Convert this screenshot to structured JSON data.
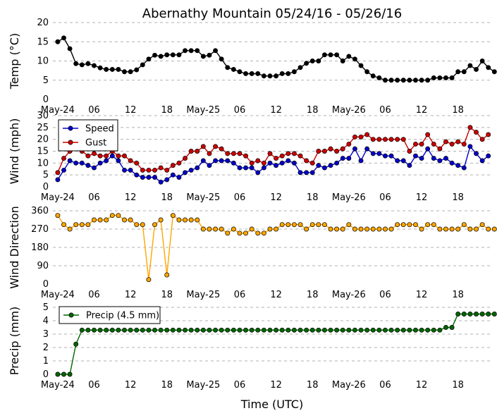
{
  "title": "Abernathy Mountain 05/24/16 - 05/26/16",
  "xlabel": "Time (UTC)",
  "x_ticks": [
    {
      "hour": 0,
      "label": "May-24"
    },
    {
      "hour": 6,
      "label": "06"
    },
    {
      "hour": 12,
      "label": "12"
    },
    {
      "hour": 18,
      "label": "18"
    },
    {
      "hour": 24,
      "label": "May-25"
    },
    {
      "hour": 30,
      "label": "06"
    },
    {
      "hour": 36,
      "label": "12"
    },
    {
      "hour": 42,
      "label": "18"
    },
    {
      "hour": 48,
      "label": "May-26"
    },
    {
      "hour": 54,
      "label": "06"
    },
    {
      "hour": 60,
      "label": "12"
    },
    {
      "hour": 66,
      "label": "18"
    }
  ],
  "x_range": [
    -0.8,
    71.5
  ],
  "colors": {
    "temp": "#000000",
    "speed": "#0000cc",
    "gust": "#cc0000",
    "direction": "#ffa500",
    "precip": "#006600"
  },
  "chart_data": [
    {
      "type": "line",
      "panel": "temp",
      "ylabel": "Temp (°C)",
      "ylim": [
        0,
        20
      ],
      "yticks": [
        0,
        5,
        10,
        15,
        20
      ],
      "hours_start": 0,
      "series": [
        {
          "name": "Temp",
          "color_key": "temp",
          "values": [
            15,
            16,
            13.2,
            9.3,
            9,
            9.3,
            8.8,
            8.2,
            7.8,
            7.8,
            7.8,
            7.2,
            7.2,
            7.7,
            9,
            10.5,
            11.5,
            11.2,
            11.6,
            11.6,
            11.6,
            12.7,
            12.7,
            12.7,
            11.2,
            11.5,
            12.7,
            10.5,
            8.3,
            7.8,
            7.2,
            6.7,
            6.7,
            6.7,
            6.1,
            6.1,
            6.1,
            6.7,
            6.7,
            7.2,
            8.3,
            9.4,
            10,
            10,
            11.6,
            11.6,
            11.6,
            10,
            11.2,
            10.5,
            8.8,
            7.2,
            6.1,
            5.6,
            5,
            5,
            5,
            5,
            5,
            5,
            5,
            5,
            5.6,
            5.6,
            5.6,
            5.6,
            7.2,
            7.2,
            8.8,
            7.8,
            10,
            8.3,
            7.2
          ]
        }
      ],
      "legend": null
    },
    {
      "type": "line",
      "panel": "wind",
      "ylabel": "Wind (mph)",
      "ylim": [
        0,
        30
      ],
      "yticks": [
        0,
        5,
        10,
        15,
        20,
        25,
        30
      ],
      "hours_start": 0,
      "series": [
        {
          "name": "Speed",
          "color_key": "speed",
          "values": [
            3,
            7,
            11,
            10,
            10,
            9,
            8,
            10,
            11,
            13,
            11,
            7,
            7,
            5,
            4,
            4,
            4,
            2,
            3,
            5,
            4,
            6,
            7,
            8,
            11,
            9,
            11,
            11,
            11,
            10,
            8,
            8,
            8,
            6,
            8,
            10,
            9,
            10,
            11,
            10,
            6,
            6,
            6,
            9,
            8,
            9,
            10,
            12,
            12,
            16,
            11,
            16,
            14,
            14,
            13,
            13,
            11,
            11,
            9,
            13,
            12,
            16,
            12,
            11,
            12,
            10,
            9,
            8,
            17,
            14,
            11,
            13
          ]
        },
        {
          "name": "Gust",
          "color_key": "gust",
          "values": [
            6,
            12,
            15,
            16,
            15,
            13,
            14,
            13,
            13,
            15,
            13,
            13,
            11,
            10,
            7,
            7,
            7,
            8,
            7,
            9,
            10,
            12,
            15,
            15,
            17,
            14,
            17,
            16,
            14,
            14,
            14,
            13,
            10,
            11,
            10,
            14,
            12,
            13,
            14,
            14,
            13,
            11,
            10,
            15,
            15,
            16,
            15,
            16,
            18,
            21,
            21,
            22,
            20,
            20,
            20,
            20,
            20,
            20,
            15,
            18,
            18,
            22,
            18,
            16,
            19,
            18,
            19,
            18,
            25,
            23,
            20,
            22
          ]
        }
      ],
      "legend": {
        "position": "top-left",
        "labels": [
          "Speed",
          "Gust"
        ]
      }
    },
    {
      "type": "line",
      "panel": "direction",
      "ylabel": "Wind Direction",
      "ylim": [
        0,
        360
      ],
      "yticks": [
        0,
        90,
        180,
        270,
        360
      ],
      "hours_start": 0,
      "series": [
        {
          "name": "Wind Direction",
          "color_key": "direction",
          "values": [
            337,
            292,
            270,
            292,
            292,
            292,
            315,
            315,
            315,
            337,
            337,
            315,
            315,
            292,
            292,
            22,
            292,
            315,
            45,
            337,
            315,
            315,
            315,
            315,
            270,
            270,
            270,
            270,
            250,
            270,
            250,
            250,
            270,
            250,
            250,
            270,
            270,
            292,
            292,
            292,
            292,
            270,
            292,
            292,
            292,
            270,
            270,
            270,
            292,
            270,
            270,
            270,
            270,
            270,
            270,
            270,
            292,
            292,
            292,
            292,
            270,
            292,
            292,
            270,
            270,
            270,
            270,
            292,
            270,
            270,
            292,
            270,
            270
          ]
        }
      ],
      "legend": null
    },
    {
      "type": "line",
      "panel": "precip",
      "ylabel": "Precip (mm)",
      "ylim": [
        0,
        5
      ],
      "yticks": [
        0,
        1,
        2,
        3,
        4,
        5
      ],
      "hours_start": 0,
      "series": [
        {
          "name": "Precip (4.5 mm)",
          "color_key": "precip",
          "values": [
            0,
            0,
            0,
            2.25,
            3.3,
            3.3,
            3.3,
            3.3,
            3.3,
            3.3,
            3.3,
            3.3,
            3.3,
            3.3,
            3.3,
            3.3,
            3.3,
            3.3,
            3.3,
            3.3,
            3.3,
            3.3,
            3.3,
            3.3,
            3.3,
            3.3,
            3.3,
            3.3,
            3.3,
            3.3,
            3.3,
            3.3,
            3.3,
            3.3,
            3.3,
            3.3,
            3.3,
            3.3,
            3.3,
            3.3,
            3.3,
            3.3,
            3.3,
            3.3,
            3.3,
            3.3,
            3.3,
            3.3,
            3.3,
            3.3,
            3.3,
            3.3,
            3.3,
            3.3,
            3.3,
            3.3,
            3.3,
            3.3,
            3.3,
            3.3,
            3.3,
            3.3,
            3.3,
            3.3,
            3.5,
            3.5,
            4.5,
            4.5,
            4.5,
            4.5,
            4.5,
            4.5,
            4.5
          ]
        }
      ],
      "legend": {
        "position": "top-left",
        "labels": [
          "Precip (4.5 mm)"
        ]
      }
    }
  ]
}
